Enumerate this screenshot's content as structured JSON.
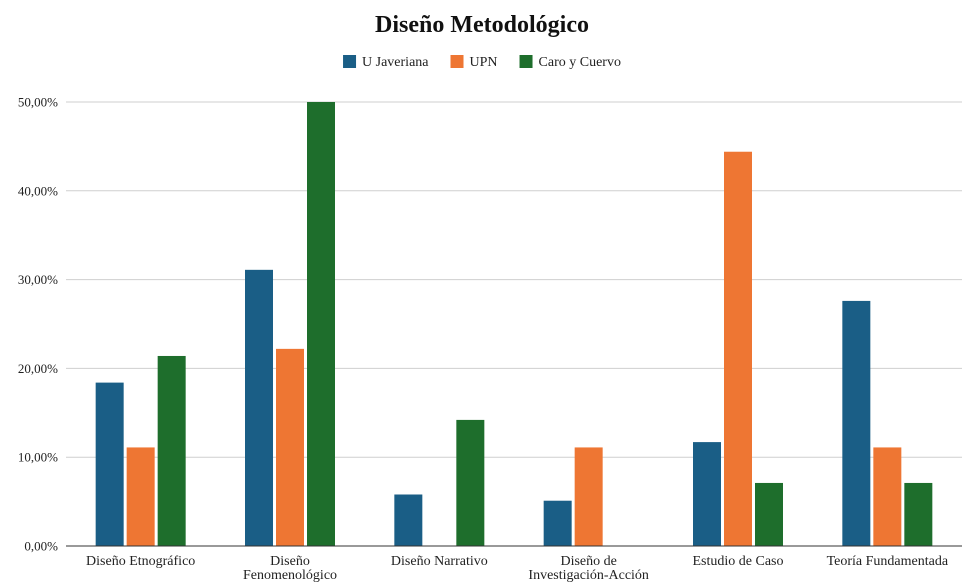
{
  "chart_data": {
    "type": "bar",
    "title": "Diseño Metodológico",
    "xlabel": "",
    "ylabel": "",
    "ylim": [
      0,
      0.5
    ],
    "yticks": [
      0,
      0.1,
      0.2,
      0.3,
      0.4,
      0.5
    ],
    "ytick_labels": [
      "0,00%",
      "10,00%",
      "20,00%",
      "30,00%",
      "40,00%",
      "50,00%"
    ],
    "grid": true,
    "legend_position": "top-center",
    "categories": [
      [
        "Diseño Etnográfico"
      ],
      [
        "Diseño",
        "Fenomenológico"
      ],
      [
        "Diseño Narrativo"
      ],
      [
        "Diseño de",
        "Investigación-Acción"
      ],
      [
        "Estudio de Caso"
      ],
      [
        "Teoría Fundamentada"
      ]
    ],
    "series": [
      {
        "name": "U Javeriana",
        "color": "#1a5e86",
        "values": [
          0.184,
          0.311,
          0.058,
          0.051,
          0.117,
          0.276
        ]
      },
      {
        "name": "UPN",
        "color": "#ee7633",
        "values": [
          0.111,
          0.222,
          0.0,
          0.111,
          0.444,
          0.111
        ]
      },
      {
        "name": "Caro y Cuervo",
        "color": "#1e6e2c",
        "values": [
          0.214,
          0.5,
          0.142,
          0.0,
          0.071,
          0.071
        ]
      }
    ]
  }
}
